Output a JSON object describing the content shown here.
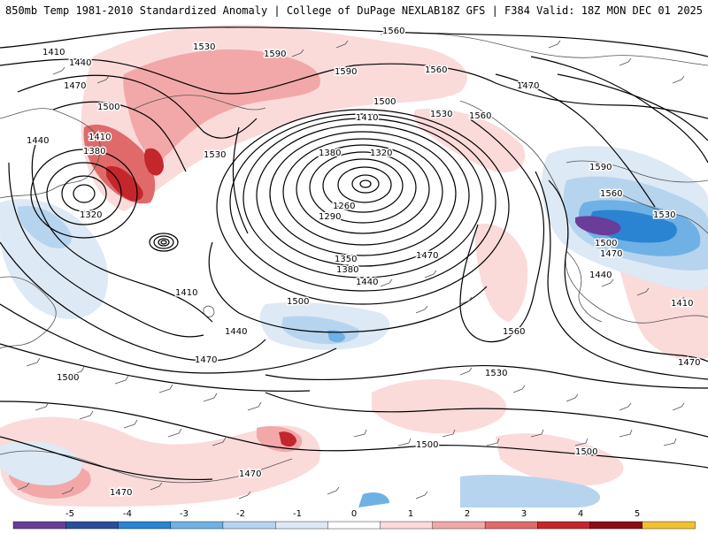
{
  "header": {
    "title_left": "850mb Temp 1981-2010 Standardized Anomaly | College of DuPage NEXLAB",
    "title_right": "18Z GFS | F384 Valid: 18Z MON DEC 01 2025"
  },
  "map": {
    "fill_variable": "850mb Temp Standardized Anomaly",
    "contour_variable": "geopotential height",
    "wind_barbs": true,
    "height_labels": [
      "1560",
      "1530",
      "1590",
      "1410",
      "1440",
      "1470",
      "1500",
      "1590",
      "1560",
      "1470",
      "1500",
      "1530",
      "1560",
      "1440",
      "1410",
      "1380",
      "1320",
      "1530",
      "1410",
      "1380",
      "1320",
      "1260",
      "1290",
      "1350",
      "1380",
      "1440",
      "1410",
      "1500",
      "1440",
      "1470",
      "1500",
      "1470",
      "1560",
      "1530",
      "1500",
      "1470",
      "1590",
      "1560",
      "1530",
      "1500",
      "1470",
      "1440",
      "1410",
      "1470",
      "1500",
      "1470"
    ],
    "colors": {
      "land_border": "#555555",
      "contour": "#000000"
    }
  },
  "colorbar": {
    "ticks": [
      "-5",
      "-4",
      "-3",
      "-2",
      "-1",
      "0",
      "1",
      "2",
      "3",
      "4",
      "5"
    ],
    "colors": [
      "#6a3d9a",
      "#2b4e9b",
      "#2a84d2",
      "#6fb1e5",
      "#b7d4ef",
      "#dde9f5",
      "#ffffff",
      "#fbdada",
      "#f2a8a8",
      "#e06a6a",
      "#c3262b",
      "#8b0d17",
      "#f2c130"
    ]
  }
}
